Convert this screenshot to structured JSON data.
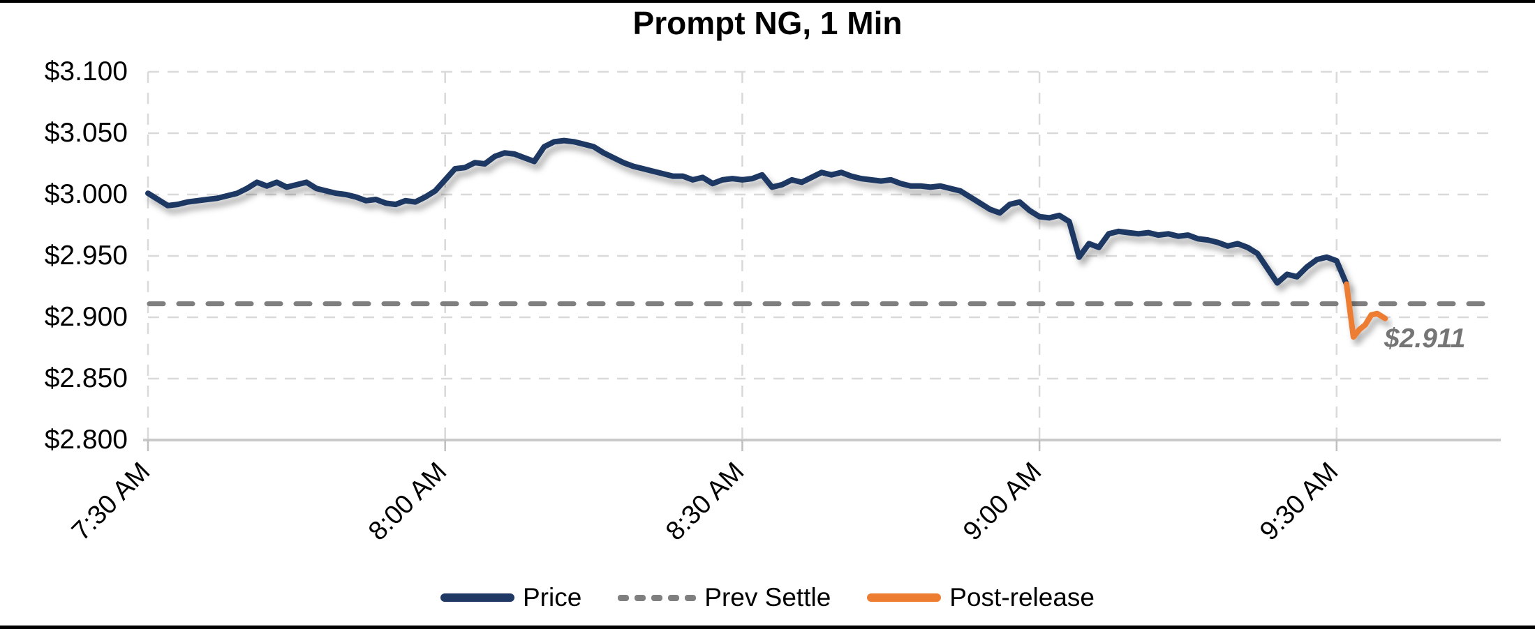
{
  "title": "Prompt NG, 1 Min",
  "annotation": {
    "text": "$2.911"
  },
  "colors": {
    "price": "#1f3864",
    "post_release": "#ed7d31",
    "prev_settle": "#7f7f7f",
    "gridline": "#d9d9d9",
    "axis_line": "#c9c9c9",
    "annotation_text": "#757575",
    "border": "#000000"
  },
  "legend": [
    {
      "label": "Price",
      "style": "solid",
      "color": "#1f3864"
    },
    {
      "label": "Prev Settle",
      "style": "dashed",
      "color": "#7f7f7f"
    },
    {
      "label": "Post-release",
      "style": "solid",
      "color": "#ed7d31"
    }
  ],
  "chart_data": {
    "type": "line",
    "title": "Prompt NG, 1 Min",
    "xlabel": "",
    "ylabel": "",
    "grid": "dashed",
    "legend_position": "bottom",
    "x_axis": {
      "ticks": [
        "7:30 AM",
        "8:00 AM",
        "8:30 AM",
        "9:00 AM",
        "9:30 AM"
      ],
      "tick_minutes": [
        0,
        30,
        60,
        90,
        120
      ],
      "start_time": "7:30 AM",
      "minutes_span": 136
    },
    "y_axis": {
      "ticks": [
        "$3.100",
        "$3.050",
        "$3.000",
        "$2.950",
        "$2.900",
        "$2.850",
        "$2.800"
      ],
      "min": 2.8,
      "max": 3.1,
      "step": 0.05
    },
    "prev_settle_value": 2.911,
    "last_price_label": "$2.911",
    "series": [
      {
        "name": "Price",
        "color": "#1f3864",
        "style": "solid",
        "points": [
          [
            0,
            3.001
          ],
          [
            1,
            2.996
          ],
          [
            2,
            2.991
          ],
          [
            3,
            2.992
          ],
          [
            4,
            2.994
          ],
          [
            5,
            2.995
          ],
          [
            6,
            2.996
          ],
          [
            7,
            2.997
          ],
          [
            8,
            2.999
          ],
          [
            9,
            3.001
          ],
          [
            10,
            3.005
          ],
          [
            11,
            3.01
          ],
          [
            12,
            3.007
          ],
          [
            13,
            3.01
          ],
          [
            14,
            3.006
          ],
          [
            15,
            3.008
          ],
          [
            16,
            3.01
          ],
          [
            17,
            3.005
          ],
          [
            18,
            3.003
          ],
          [
            19,
            3.001
          ],
          [
            20,
            3.0
          ],
          [
            21,
            2.998
          ],
          [
            22,
            2.995
          ],
          [
            23,
            2.996
          ],
          [
            24,
            2.993
          ],
          [
            25,
            2.992
          ],
          [
            26,
            2.995
          ],
          [
            27,
            2.994
          ],
          [
            28,
            2.998
          ],
          [
            29,
            3.003
          ],
          [
            30,
            3.012
          ],
          [
            31,
            3.021
          ],
          [
            32,
            3.022
          ],
          [
            33,
            3.026
          ],
          [
            34,
            3.025
          ],
          [
            35,
            3.031
          ],
          [
            36,
            3.034
          ],
          [
            37,
            3.033
          ],
          [
            38,
            3.03
          ],
          [
            39,
            3.027
          ],
          [
            40,
            3.039
          ],
          [
            41,
            3.043
          ],
          [
            42,
            3.044
          ],
          [
            43,
            3.043
          ],
          [
            44,
            3.041
          ],
          [
            45,
            3.039
          ],
          [
            46,
            3.034
          ],
          [
            47,
            3.03
          ],
          [
            48,
            3.026
          ],
          [
            49,
            3.023
          ],
          [
            50,
            3.021
          ],
          [
            51,
            3.019
          ],
          [
            52,
            3.017
          ],
          [
            53,
            3.015
          ],
          [
            54,
            3.015
          ],
          [
            55,
            3.012
          ],
          [
            56,
            3.014
          ],
          [
            57,
            3.009
          ],
          [
            58,
            3.012
          ],
          [
            59,
            3.013
          ],
          [
            60,
            3.012
          ],
          [
            61,
            3.013
          ],
          [
            62,
            3.016
          ],
          [
            63,
            3.006
          ],
          [
            64,
            3.008
          ],
          [
            65,
            3.012
          ],
          [
            66,
            3.01
          ],
          [
            67,
            3.014
          ],
          [
            68,
            3.018
          ],
          [
            69,
            3.016
          ],
          [
            70,
            3.018
          ],
          [
            71,
            3.015
          ],
          [
            72,
            3.013
          ],
          [
            73,
            3.012
          ],
          [
            74,
            3.011
          ],
          [
            75,
            3.012
          ],
          [
            76,
            3.009
          ],
          [
            77,
            3.007
          ],
          [
            78,
            3.007
          ],
          [
            79,
            3.006
          ],
          [
            80,
            3.007
          ],
          [
            81,
            3.005
          ],
          [
            82,
            3.003
          ],
          [
            83,
            2.998
          ],
          [
            84,
            2.993
          ],
          [
            85,
            2.988
          ],
          [
            86,
            2.985
          ],
          [
            87,
            2.992
          ],
          [
            88,
            2.994
          ],
          [
            89,
            2.987
          ],
          [
            90,
            2.982
          ],
          [
            91,
            2.981
          ],
          [
            92,
            2.983
          ],
          [
            93,
            2.978
          ],
          [
            94,
            2.949
          ],
          [
            95,
            2.96
          ],
          [
            96,
            2.957
          ],
          [
            97,
            2.968
          ],
          [
            98,
            2.97
          ],
          [
            99,
            2.969
          ],
          [
            100,
            2.968
          ],
          [
            101,
            2.969
          ],
          [
            102,
            2.967
          ],
          [
            103,
            2.968
          ],
          [
            104,
            2.966
          ],
          [
            105,
            2.967
          ],
          [
            106,
            2.964
          ],
          [
            107,
            2.963
          ],
          [
            108,
            2.961
          ],
          [
            109,
            2.958
          ],
          [
            110,
            2.96
          ],
          [
            111,
            2.957
          ],
          [
            112,
            2.952
          ],
          [
            113,
            2.94
          ],
          [
            114,
            2.928
          ],
          [
            115,
            2.935
          ],
          [
            116,
            2.933
          ],
          [
            117,
            2.941
          ],
          [
            118,
            2.947
          ],
          [
            119,
            2.949
          ],
          [
            120,
            2.946
          ],
          [
            121,
            2.927
          ]
        ]
      },
      {
        "name": "Prev Settle",
        "color": "#7f7f7f",
        "style": "dashed",
        "value": 2.911
      },
      {
        "name": "Post-release",
        "color": "#ed7d31",
        "style": "solid",
        "points": [
          [
            121,
            2.927
          ],
          [
            121.4,
            2.902
          ],
          [
            121.7,
            2.884
          ],
          [
            122.3,
            2.89
          ],
          [
            122.9,
            2.894
          ],
          [
            123.5,
            2.902
          ],
          [
            124.1,
            2.903
          ],
          [
            124.5,
            2.901
          ],
          [
            124.9,
            2.899
          ]
        ]
      }
    ]
  }
}
